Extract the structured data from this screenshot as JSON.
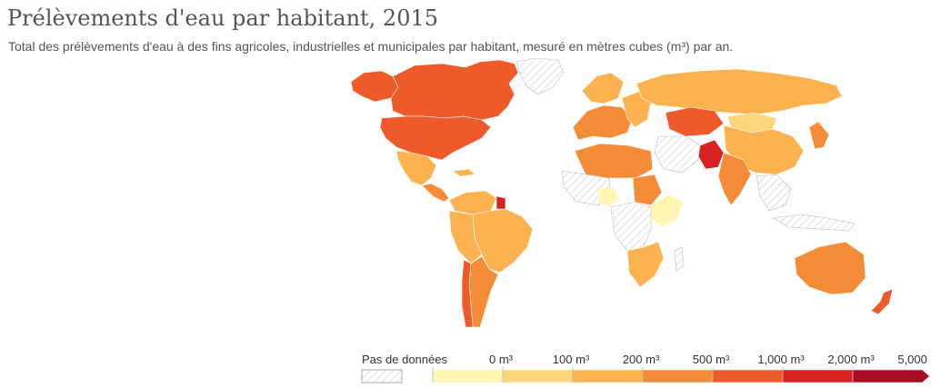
{
  "header": {
    "title": "Prélèvements d'eau par habitant, 2015",
    "subtitle": "Total des prélèvements d'eau à des fins agricoles, industrielles et municipales par habitant, mesuré en mètres cubes (m³) par an."
  },
  "legend": {
    "no_data_label": "Pas de données",
    "bins": [
      {
        "label": "0 m³",
        "color": "#fff6b3"
      },
      {
        "label": "100 m³",
        "color": "#fdd57a"
      },
      {
        "label": "200 m³",
        "color": "#fbb24f"
      },
      {
        "label": "500 m³",
        "color": "#f58d38"
      },
      {
        "label": "1,000 m³",
        "color": "#ee5a2a"
      },
      {
        "label": "2,000 m³",
        "color": "#d72222"
      },
      {
        "label": "5,000 m³",
        "color": "#a80d24"
      }
    ]
  },
  "colors": {
    "no_data_hatch": "#cccccc",
    "border": "#ffffff"
  }
}
